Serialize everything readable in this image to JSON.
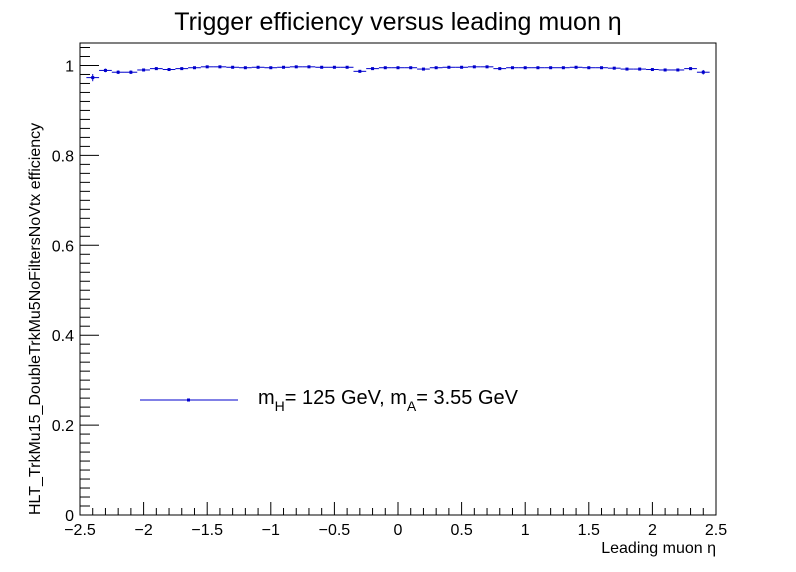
{
  "chart_data": {
    "type": "scatter",
    "title": "Trigger efficiency versus leading muon η",
    "xlabel": "Leading muon η",
    "ylabel": "HLT_TrkMu15_DoubleTrkMu5NoFiltersNoVtx efficiency",
    "xlim": [
      -2.5,
      2.5
    ],
    "ylim": [
      0,
      1.05
    ],
    "x_ticks": [
      -2.5,
      -2,
      -1.5,
      -1,
      -0.5,
      0,
      0.5,
      1,
      1.5,
      2,
      2.5
    ],
    "x_tick_labels": [
      "−2.5",
      "−2",
      "−1.5",
      "−1",
      "−0.5",
      "0",
      "0.5",
      "1",
      "1.5",
      "2",
      "2.5"
    ],
    "y_ticks": [
      0,
      0.2,
      0.4,
      0.6,
      0.8,
      1
    ],
    "y_tick_labels": [
      "0",
      "0.2",
      "0.4",
      "0.6",
      "0.8",
      "1"
    ],
    "grid": false,
    "legend_position": "lower-left",
    "series": [
      {
        "name": "m_H= 125 GeV, m_A= 3.55 GeV",
        "legend_main_1": "m",
        "legend_sub_1": "H",
        "legend_main_2": "= 125 GeV, m",
        "legend_sub_2": "A",
        "legend_main_3": "= 3.55 GeV",
        "color": "#0000cc",
        "bin_half_width": 0.05,
        "x": [
          -2.4,
          -2.3,
          -2.2,
          -2.1,
          -2.0,
          -1.9,
          -1.8,
          -1.7,
          -1.6,
          -1.5,
          -1.4,
          -1.3,
          -1.2,
          -1.1,
          -1.0,
          -0.9,
          -0.8,
          -0.7,
          -0.6,
          -0.5,
          -0.4,
          -0.3,
          -0.2,
          -0.1,
          0.0,
          0.1,
          0.2,
          0.3,
          0.4,
          0.5,
          0.6,
          0.7,
          0.8,
          0.9,
          1.0,
          1.1,
          1.2,
          1.3,
          1.4,
          1.5,
          1.6,
          1.7,
          1.8,
          1.9,
          2.0,
          2.1,
          2.2,
          2.3,
          2.4
        ],
        "y": [
          0.973,
          0.989,
          0.985,
          0.985,
          0.99,
          0.993,
          0.991,
          0.993,
          0.995,
          0.997,
          0.997,
          0.996,
          0.995,
          0.996,
          0.995,
          0.996,
          0.997,
          0.997,
          0.996,
          0.996,
          0.996,
          0.987,
          0.993,
          0.995,
          0.995,
          0.995,
          0.992,
          0.995,
          0.996,
          0.996,
          0.997,
          0.997,
          0.993,
          0.995,
          0.995,
          0.995,
          0.995,
          0.995,
          0.996,
          0.995,
          0.995,
          0.994,
          0.992,
          0.992,
          0.991,
          0.99,
          0.99,
          0.993,
          0.985
        ],
        "yerr": [
          0.008,
          0.004,
          0.004,
          0.004,
          0.003,
          0.003,
          0.003,
          0.002,
          0.002,
          0.002,
          0.002,
          0.002,
          0.002,
          0.002,
          0.002,
          0.002,
          0.002,
          0.002,
          0.002,
          0.002,
          0.002,
          0.003,
          0.002,
          0.002,
          0.002,
          0.002,
          0.002,
          0.002,
          0.002,
          0.002,
          0.002,
          0.002,
          0.002,
          0.002,
          0.002,
          0.002,
          0.002,
          0.002,
          0.002,
          0.002,
          0.002,
          0.002,
          0.002,
          0.003,
          0.003,
          0.003,
          0.003,
          0.003,
          0.005
        ]
      }
    ]
  }
}
